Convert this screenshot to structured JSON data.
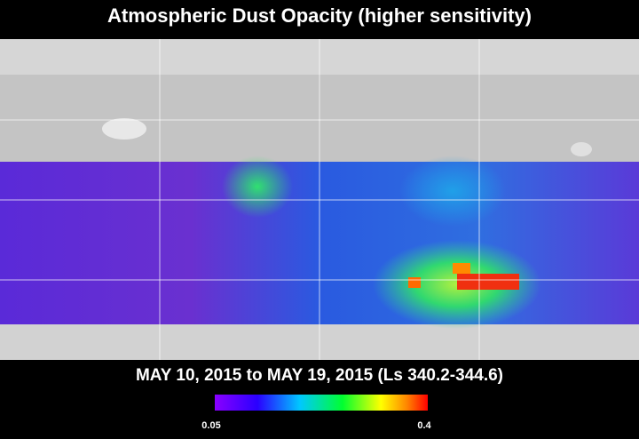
{
  "header": {
    "title": "Atmospheric Dust Opacity (higher sensitivity)"
  },
  "date_range": "MAY 10, 2015 to MAY 19, 2015 (Ls 340.2-344.6)",
  "colorbar": {
    "min": 0.05,
    "max": 0.4
  }
}
